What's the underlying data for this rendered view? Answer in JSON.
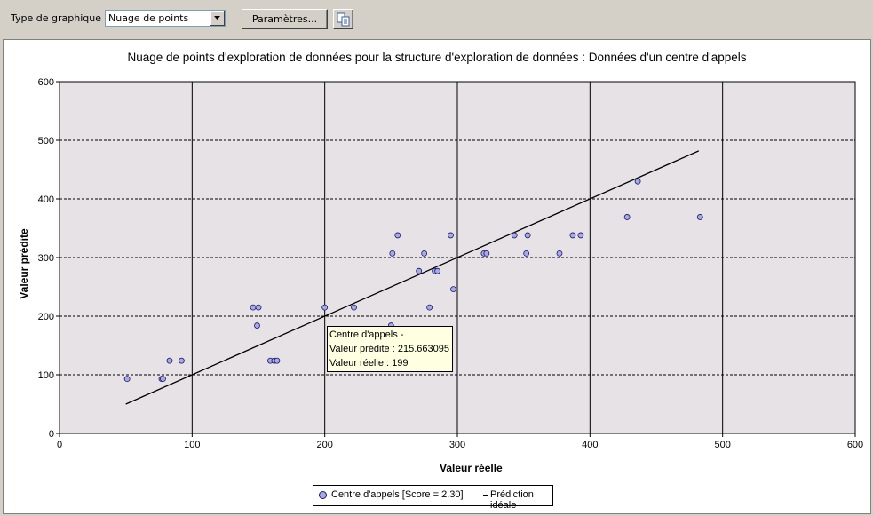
{
  "toolbar": {
    "chart_type_label": "Type de graphique :",
    "chart_type_value": "Nuage de points",
    "params_button": "Paramètres...",
    "copy_icon": "copy-icon"
  },
  "tooltip": {
    "line1": "Centre d'appels -",
    "line2": "Valeur prédite : 215.663095",
    "line3": "Valeur réelle : 199"
  },
  "colors": {
    "plot_bg": "#e6e2e6",
    "point_fill": "#a8a8ec",
    "point_stroke": "#1a1a60",
    "line": "#000000"
  },
  "chart_data": {
    "type": "scatter",
    "title": "Nuage de points d'exploration de données pour la structure d'exploration de données : Données d'un centre d'appels",
    "xlabel": "Valeur réelle",
    "ylabel": "Valeur prédite",
    "xlim": [
      0,
      600
    ],
    "ylim": [
      0,
      600
    ],
    "xticks": [
      0,
      100,
      200,
      300,
      400,
      500,
      600
    ],
    "yticks": [
      0,
      100,
      200,
      300,
      400,
      500,
      600
    ],
    "grid": true,
    "legend_position": "bottom-center",
    "series": [
      {
        "name": "Centre d'appels [Score = 2.30]",
        "points": [
          [
            51,
            93
          ],
          [
            77,
            93
          ],
          [
            78,
            93
          ],
          [
            83,
            124
          ],
          [
            92,
            124
          ],
          [
            146,
            215
          ],
          [
            150,
            215
          ],
          [
            149,
            184
          ],
          [
            159,
            124
          ],
          [
            162,
            124
          ],
          [
            164,
            124
          ],
          [
            200,
            215
          ],
          [
            222,
            215
          ],
          [
            250,
            184
          ],
          [
            251,
            307
          ],
          [
            255,
            338
          ],
          [
            271,
            277
          ],
          [
            275,
            307
          ],
          [
            279,
            215
          ],
          [
            283,
            277
          ],
          [
            285,
            277
          ],
          [
            295,
            338
          ],
          [
            297,
            246
          ],
          [
            320,
            307
          ],
          [
            322,
            307
          ],
          [
            343,
            338
          ],
          [
            352,
            307
          ],
          [
            353,
            338
          ],
          [
            377,
            307
          ],
          [
            387,
            338
          ],
          [
            393,
            338
          ],
          [
            428,
            369
          ],
          [
            436,
            430
          ],
          [
            483,
            369
          ]
        ]
      },
      {
        "name": "Prédiction idéale",
        "line": [
          [
            50,
            50
          ],
          [
            482,
            482
          ]
        ]
      }
    ]
  }
}
